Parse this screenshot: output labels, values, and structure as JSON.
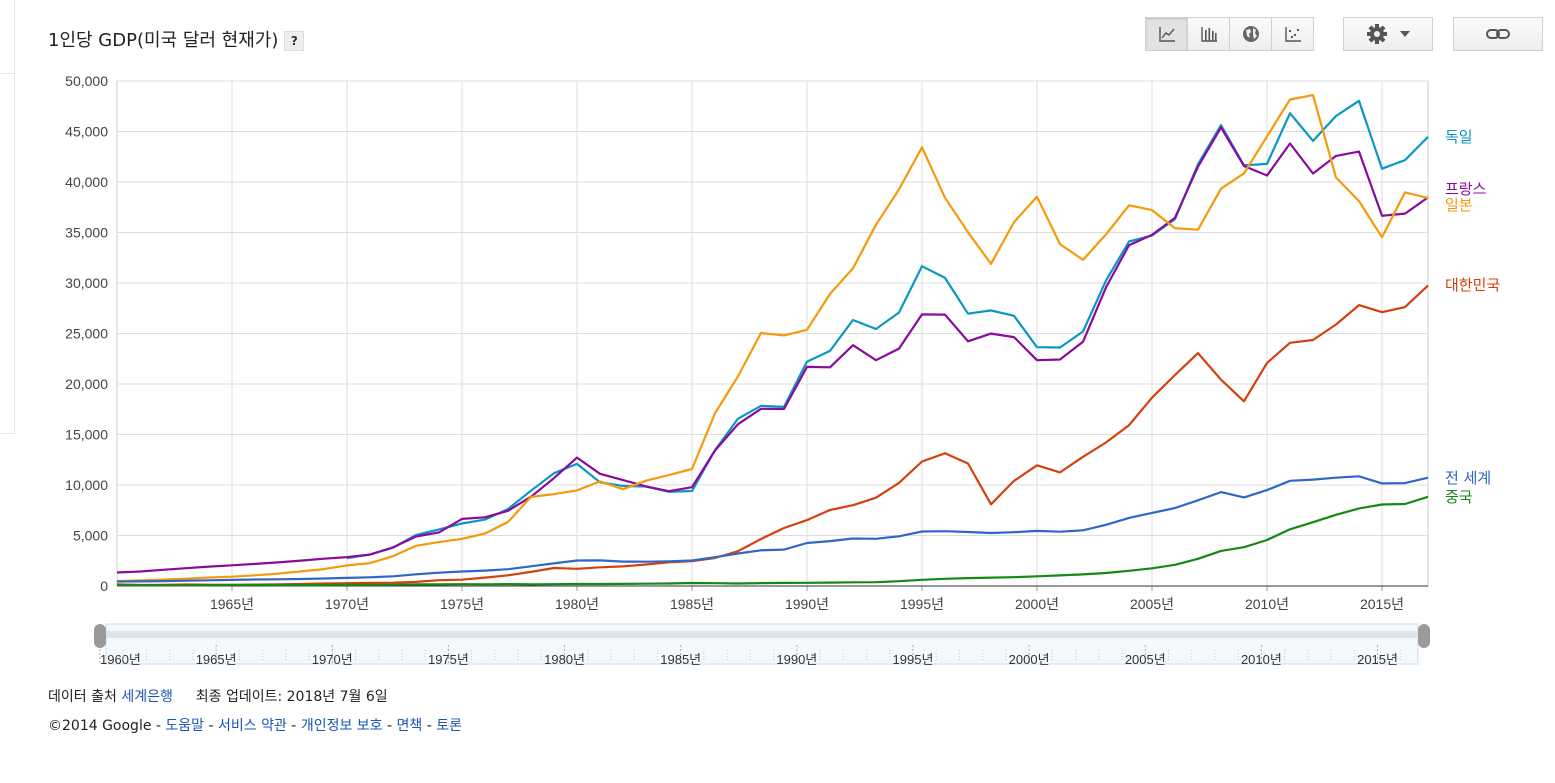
{
  "title": "1인당 GDP(미국 달러 현재가)",
  "help_label": "?",
  "toolbar": {
    "buttons": [
      {
        "name": "line-chart-button",
        "icon": "line-chart-icon",
        "active": true
      },
      {
        "name": "bar-chart-button",
        "icon": "bar-chart-icon",
        "active": false
      },
      {
        "name": "map-button",
        "icon": "globe-icon",
        "active": false
      },
      {
        "name": "scatter-button",
        "icon": "scatter-icon",
        "active": false
      }
    ],
    "settings_icon": "gear-icon",
    "link_icon": "link-icon"
  },
  "footer": {
    "source_prefix": "데이터 출처",
    "source_link": "세계은행",
    "updated": "최종 업데이트: 2018년 7월 6일",
    "copyright": "©2014 Google",
    "sep": " - ",
    "links": [
      "도움말",
      "서비스 약관",
      "개인정보 보호",
      "면책",
      "토론"
    ]
  },
  "chart_data": {
    "type": "line",
    "title": "1인당 GDP(미국 달러 현재가)",
    "xlim": [
      1960,
      2017
    ],
    "ylim": [
      0,
      50000
    ],
    "y_ticks": [
      0,
      5000,
      10000,
      15000,
      20000,
      25000,
      30000,
      35000,
      40000,
      45000,
      50000
    ],
    "y_tick_labels": [
      "0",
      "5,000",
      "10,000",
      "15,000",
      "20,000",
      "25,000",
      "30,000",
      "35,000",
      "40,000",
      "45,000",
      "50,000"
    ],
    "x_ticks": [
      1965,
      1970,
      1975,
      1980,
      1985,
      1990,
      1995,
      2000,
      2005,
      2010,
      2015
    ],
    "x_tick_labels": [
      "1965년",
      "1970년",
      "1975년",
      "1980년",
      "1985년",
      "1990년",
      "1995년",
      "2000년",
      "2005년",
      "2010년",
      "2015년"
    ],
    "range_ticks": [
      1960,
      1965,
      1970,
      1975,
      1980,
      1985,
      1990,
      1995,
      2000,
      2005,
      2010,
      2015
    ],
    "range_tick_labels": [
      "1960년",
      "1965년",
      "1970년",
      "1975년",
      "1980년",
      "1985년",
      "1990년",
      "1995년",
      "2000년",
      "2005년",
      "2010년",
      "2015년"
    ],
    "grid": true,
    "legend_position": "right",
    "x": [
      1960,
      1961,
      1962,
      1963,
      1964,
      1965,
      1966,
      1967,
      1968,
      1969,
      1970,
      1971,
      1972,
      1973,
      1974,
      1975,
      1976,
      1977,
      1978,
      1979,
      1980,
      1981,
      1982,
      1983,
      1984,
      1985,
      1986,
      1987,
      1988,
      1989,
      1990,
      1991,
      1992,
      1993,
      1994,
      1995,
      1996,
      1997,
      1998,
      1999,
      2000,
      2001,
      2002,
      2003,
      2004,
      2005,
      2006,
      2007,
      2008,
      2009,
      2010,
      2011,
      2012,
      2013,
      2014,
      2015,
      2016,
      2017
    ],
    "series": [
      {
        "name": "독일",
        "color": "#0b96c4",
        "values": [
          null,
          null,
          null,
          null,
          null,
          null,
          null,
          null,
          null,
          null,
          2750,
          3130,
          3790,
          5050,
          5600,
          6190,
          6570,
          7620,
          9440,
          11170,
          12090,
          10270,
          9910,
          9850,
          9330,
          9410,
          13460,
          16560,
          17840,
          17730,
          22220,
          23280,
          26340,
          25450,
          27080,
          31660,
          30500,
          26960,
          27290,
          26750,
          23640,
          23610,
          25200,
          30240,
          34110,
          34700,
          36330,
          41760,
          45630,
          41650,
          41790,
          46810,
          44070,
          46530,
          48040,
          41320,
          42170,
          44470
        ]
      },
      {
        "name": "프랑스",
        "color": "#8b0a9e",
        "values": [
          1340,
          1440,
          1600,
          1760,
          1920,
          2050,
          2190,
          2340,
          2510,
          2700,
          2860,
          3110,
          3820,
          4900,
          5310,
          6640,
          6800,
          7450,
          8840,
          10680,
          12710,
          11110,
          10490,
          9860,
          9390,
          9780,
          13420,
          16020,
          17540,
          17520,
          21690,
          21650,
          23840,
          22360,
          23500,
          26890,
          26870,
          24230,
          24990,
          24640,
          22360,
          22430,
          24180,
          29560,
          33740,
          34760,
          36470,
          41510,
          45410,
          41580,
          40640,
          43810,
          40840,
          42580,
          43010,
          36650,
          36870,
          38480
        ]
      },
      {
        "name": "일본",
        "color": "#f49a0c",
        "values": [
          480,
          560,
          630,
          720,
          840,
          920,
          1060,
          1230,
          1450,
          1670,
          2040,
          2270,
          2950,
          3980,
          4350,
          4670,
          5200,
          6340,
          8820,
          9100,
          9470,
          10360,
          9580,
          10430,
          10980,
          11580,
          17110,
          20750,
          25050,
          24810,
          25370,
          28920,
          31460,
          35770,
          39270,
          43440,
          38440,
          35020,
          31900,
          36030,
          38530,
          33850,
          32290,
          34810,
          37690,
          37220,
          35430,
          35280,
          39340,
          40860,
          44510,
          48170,
          48600,
          40450,
          38110,
          34520,
          38970,
          38430
        ]
      },
      {
        "name": "대한민국",
        "color": "#d6400d",
        "values": [
          160,
          95,
          107,
          145,
          125,
          110,
          135,
          162,
          200,
          250,
          280,
          310,
          325,
          405,
          570,
          620,
          830,
          1060,
          1400,
          1780,
          1700,
          1850,
          1940,
          2130,
          2350,
          2460,
          2770,
          3450,
          4650,
          5740,
          6520,
          7520,
          8000,
          8740,
          10210,
          12330,
          13140,
          12130,
          8090,
          10410,
          11950,
          11250,
          12790,
          14210,
          15920,
          18640,
          20890,
          23060,
          20430,
          18290,
          22090,
          24080,
          24360,
          25890,
          27810,
          27110,
          27610,
          29740
        ]
      },
      {
        "name": "전 세계",
        "color": "#2f67c7",
        "values": [
          450,
          460,
          490,
          520,
          560,
          600,
          640,
          660,
          690,
          740,
          800,
          860,
          960,
          1160,
          1320,
          1440,
          1520,
          1660,
          1950,
          2240,
          2520,
          2530,
          2420,
          2410,
          2450,
          2520,
          2850,
          3220,
          3530,
          3600,
          4260,
          4450,
          4700,
          4670,
          4920,
          5400,
          5430,
          5350,
          5250,
          5330,
          5460,
          5380,
          5510,
          6060,
          6740,
          7240,
          7720,
          8490,
          9300,
          8770,
          9500,
          10420,
          10530,
          10720,
          10860,
          10160,
          10190,
          10720
        ]
      },
      {
        "name": "중국",
        "color": "#148a14",
        "values": [
          90,
          76,
          70,
          74,
          85,
          98,
          104,
          97,
          91,
          100,
          113,
          119,
          132,
          157,
          160,
          178,
          165,
          185,
          156,
          183,
          195,
          197,
          203,
          225,
          251,
          294,
          282,
          252,
          284,
          311,
          318,
          333,
          366,
          377,
          473,
          610,
          709,
          782,
          829,
          873,
          959,
          1053,
          1148,
          1288,
          1508,
          1753,
          2099,
          2695,
          3471,
          3838,
          4550,
          5618,
          6317,
          7051,
          7679,
          8067,
          8117,
          8827
        ]
      }
    ]
  }
}
